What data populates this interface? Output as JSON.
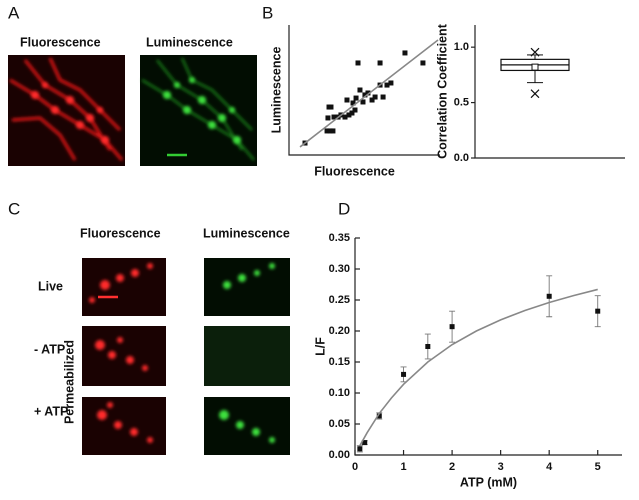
{
  "panels": {
    "a": "A",
    "b": "B",
    "c": "C",
    "d": "D"
  },
  "panel_a": {
    "fluorescence": "Fluorescence",
    "luminescence": "Luminescence"
  },
  "panel_c": {
    "fluorescence": "Fluorescence",
    "luminescence": "Luminescence",
    "rows": [
      "Live",
      "- ATP",
      "+ ATP"
    ],
    "group": "Permeabilized"
  },
  "chart_data": [
    {
      "type": "scatter",
      "xlabel": "Fluorescence",
      "ylabel": "Luminescence",
      "xlim": [
        0,
        100
      ],
      "ylim": [
        0,
        100
      ],
      "series": [
        {
          "name": "data",
          "color": "#111111",
          "x": [
            10.6,
            25.2,
            27.2,
            29.1,
            26.5,
            27.8,
            25.8,
            29.8,
            32.5,
            34.4,
            37.1,
            39.7,
            41.7,
            43.7,
            38.4,
            42.4,
            44.4,
            47.0,
            49.0,
            50.3,
            52.3,
            55.0,
            57.0,
            60.3,
            62.3,
            64.9,
            67.5,
            45.7,
            60.3,
            76.8,
            88.7
          ],
          "values": [
            9.2,
            18.5,
            18.5,
            18.5,
            36.9,
            36.9,
            28.5,
            29.2,
            29.2,
            30.8,
            29.2,
            30.8,
            32.3,
            34.6,
            42.3,
            40.0,
            43.8,
            50.0,
            40.8,
            46.2,
            47.7,
            42.3,
            44.6,
            53.8,
            44.6,
            53.8,
            55.4,
            70.8,
            70.8,
            78.5,
            70.8
          ]
        },
        {
          "name": "fit",
          "color": "#888888",
          "x": [
            7.3,
            98.7
          ],
          "values": [
            6.2,
            88.5
          ]
        }
      ]
    },
    {
      "type": "box",
      "ylabel": "Correlation Coefficient",
      "ylim": [
        0,
        1.2
      ],
      "yticks": [
        {
          "value": 0,
          "label": "0.0"
        },
        {
          "value": 0.5,
          "label": "0.5"
        },
        {
          "value": 1,
          "label": "1.0"
        }
      ],
      "color": "#111111",
      "boxes": [
        {
          "whisker_low": 0.68,
          "q1": 0.79,
          "median": 0.84,
          "q3": 0.89,
          "whisker_high": 0.93,
          "mean": 0.82,
          "outliers": [
            0.58,
            0.955
          ]
        }
      ]
    },
    {
      "type": "scatter",
      "xlabel": "ATP (mM)",
      "ylabel": "L/F",
      "xlim": [
        0,
        5.5
      ],
      "ylim": [
        0,
        0.35
      ],
      "xticks": [
        0,
        1,
        2,
        3,
        4,
        5
      ],
      "yticks": [
        {
          "value": 0,
          "label": "0.00"
        },
        {
          "value": 0.05,
          "label": "0.05"
        },
        {
          "value": 0.1,
          "label": "0.10"
        },
        {
          "value": 0.15,
          "label": "0.15"
        },
        {
          "value": 0.2,
          "label": "0.20"
        },
        {
          "value": 0.25,
          "label": "0.25"
        },
        {
          "value": 0.3,
          "label": "0.30"
        },
        {
          "value": 0.35,
          "label": "0.35"
        }
      ],
      "series": [
        {
          "name": "data",
          "color": "#111111",
          "x": [
            0.1,
            0.2,
            0.5,
            1,
            1.5,
            2,
            4,
            5
          ],
          "values": [
            0.01,
            0.02,
            0.063,
            0.13,
            0.175,
            0.207,
            0.256,
            0.232
          ],
          "errors": [
            0.005,
            0.003,
            0.005,
            0.012,
            0.02,
            0.025,
            0.033,
            0.025
          ]
        },
        {
          "name": "fit",
          "color": "#888888",
          "x": [
            0.1,
            0.25,
            0.5,
            0.75,
            1,
            1.5,
            2,
            2.5,
            3,
            3.5,
            4,
            4.5,
            5
          ],
          "values": [
            0.015,
            0.036,
            0.067,
            0.092,
            0.114,
            0.15,
            0.178,
            0.2,
            0.218,
            0.233,
            0.246,
            0.257,
            0.267
          ]
        }
      ]
    }
  ]
}
